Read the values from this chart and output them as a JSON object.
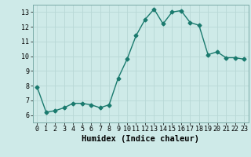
{
  "x": [
    0,
    1,
    2,
    3,
    4,
    5,
    6,
    7,
    8,
    9,
    10,
    11,
    12,
    13,
    14,
    15,
    16,
    17,
    18,
    19,
    20,
    21,
    22,
    23
  ],
  "y": [
    7.9,
    6.2,
    6.3,
    6.5,
    6.8,
    6.8,
    6.7,
    6.5,
    6.7,
    8.5,
    9.8,
    11.4,
    12.5,
    13.2,
    12.2,
    13.0,
    13.1,
    12.3,
    12.1,
    10.1,
    10.3,
    9.9,
    9.9,
    9.8
  ],
  "xlabel": "Humidex (Indice chaleur)",
  "xlim": [
    -0.5,
    23.5
  ],
  "ylim": [
    5.5,
    13.5
  ],
  "yticks": [
    6,
    7,
    8,
    9,
    10,
    11,
    12,
    13
  ],
  "xticks": [
    0,
    1,
    2,
    3,
    4,
    5,
    6,
    7,
    8,
    9,
    10,
    11,
    12,
    13,
    14,
    15,
    16,
    17,
    18,
    19,
    20,
    21,
    22,
    23
  ],
  "line_color": "#1a7a6e",
  "marker": "D",
  "marker_size": 2.5,
  "line_width": 1.0,
  "bg_color": "#ceeae8",
  "grid_color": "#b8d8d6",
  "tick_label_fontsize": 6.0,
  "xlabel_fontsize": 7.5
}
